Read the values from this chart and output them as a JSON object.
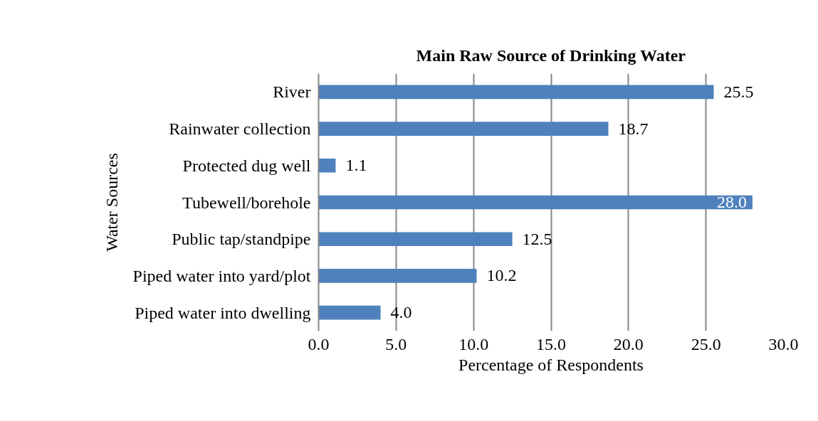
{
  "chart_data": {
    "type": "bar",
    "orientation": "horizontal",
    "title": "Main Raw Source of Drinking Water",
    "xlabel": "Percentage of Respondents",
    "ylabel": "Water Sources",
    "categories": [
      "River",
      "Rainwater collection",
      "Protected dug well",
      "Tubewell/borehole",
      "Public tap/standpipe",
      "Piped water into yard/plot",
      "Piped water into dwelling"
    ],
    "values": [
      25.5,
      18.7,
      1.1,
      28.0,
      12.5,
      10.2,
      4.0
    ],
    "value_labels": [
      "25.5",
      "18.7",
      "1.1",
      "28.0",
      "12.5",
      "10.2",
      "4.0"
    ],
    "color": "#4f81bd",
    "xlim": [
      0,
      30
    ],
    "xticks": [
      {
        "value": 0,
        "label": "0.0"
      },
      {
        "value": 5,
        "label": "5.0"
      },
      {
        "value": 10,
        "label": "10.0"
      },
      {
        "value": 15,
        "label": "15.0"
      },
      {
        "value": 20,
        "label": "20.0"
      },
      {
        "value": 25,
        "label": "25.0"
      },
      {
        "value": 30,
        "label": "30.0"
      }
    ],
    "grid": "x"
  }
}
